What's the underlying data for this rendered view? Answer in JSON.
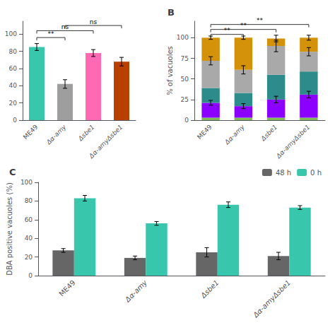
{
  "chart_data": [
    {
      "type": "bar",
      "categories": [
        "ME49",
        "Δα-amy",
        "Δsbe1",
        "Δα-amyΔsbe1"
      ],
      "values": [
        85,
        42,
        78,
        68
      ],
      "errors": [
        4,
        5,
        4,
        5
      ],
      "colors": [
        "#38C7AC",
        "#9E9E9E",
        "#FF69B4",
        "#B84000"
      ],
      "ylim": [
        0,
        115
      ],
      "yticks": [
        0,
        20,
        40,
        60,
        80,
        100
      ],
      "grid": false,
      "annotations": [
        {
          "text": "**",
          "between": [
            "ME49",
            "Δα-amy"
          ],
          "y": 96
        },
        {
          "text": "ns",
          "between": [
            "ME49",
            "Δsbe1"
          ],
          "y": 104
        },
        {
          "text": "ns",
          "between": [
            "Δα-amy",
            "Δα-amyΔsbe1"
          ],
          "y": 110
        }
      ]
    },
    {
      "type": "bar",
      "title": "B",
      "ylabel": "% of vacuoles",
      "stacked": true,
      "categories": [
        "ME49",
        "Δα-amy",
        "Δsbe1",
        "Δα-amyΔsbe1"
      ],
      "series": [
        {
          "color": "#7DBB55",
          "values": [
            3,
            3,
            3,
            3
          ]
        },
        {
          "color": "#8B00FF",
          "values": [
            18,
            14,
            22,
            28
          ],
          "errors": [
            3,
            3,
            4,
            4
          ]
        },
        {
          "color": "#2E8B8B",
          "values": [
            18,
            16,
            30,
            28
          ]
        },
        {
          "color": "#A9A9A9",
          "values": [
            33,
            28,
            35,
            24
          ],
          "errors": [
            5,
            5,
            7,
            5
          ]
        },
        {
          "color": "#D4920A",
          "values": [
            28,
            39,
            9,
            17
          ],
          "errors": [
            2,
            2,
            4,
            3
          ]
        }
      ],
      "ylim": [
        0,
        120
      ],
      "yticks": [
        0,
        25,
        50,
        75,
        100
      ],
      "grid": false,
      "annotations": [
        {
          "text": "**",
          "between": [
            "ME49",
            "Δα-amy"
          ],
          "y": 104
        },
        {
          "text": "**",
          "between": [
            "ME49",
            "Δsbe1"
          ],
          "y": 110
        },
        {
          "text": "**",
          "between": [
            "ME49",
            "Δα-amyΔsbe1"
          ],
          "y": 116
        }
      ]
    },
    {
      "type": "bar",
      "title": "C",
      "ylabel": "DBA positive vacuoles (%)",
      "categories": [
        "ME49",
        "Δα-amy",
        "Δsbe1",
        "Δα-amyΔsbe1"
      ],
      "series": [
        {
          "name": "48 h",
          "color": "#666666",
          "values": [
            27,
            19,
            25,
            21
          ],
          "errors": [
            2,
            2,
            5,
            4
          ]
        },
        {
          "name": "0 h",
          "color": "#38C7AC",
          "values": [
            83,
            56,
            76,
            73
          ],
          "errors": [
            3,
            2,
            3,
            2
          ]
        }
      ],
      "ylim": [
        0,
        100
      ],
      "yticks": [
        0,
        20,
        40,
        60,
        80,
        100
      ],
      "grid": false,
      "legend": "upper right"
    }
  ]
}
